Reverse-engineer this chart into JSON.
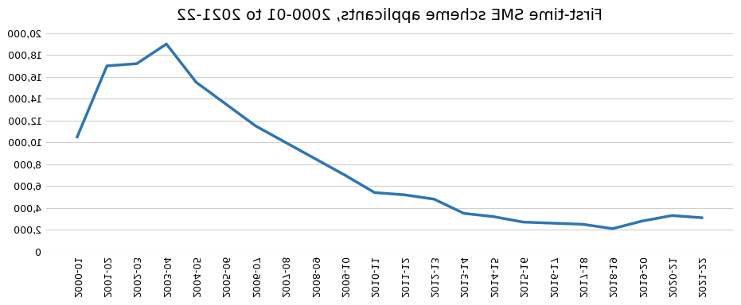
{
  "title": "First-time SME scheme applicants, 2000-01 to 2021-22",
  "categories": [
    "2000-01",
    "2001-02",
    "2002-03",
    "2003-04",
    "2004-05",
    "2005-06",
    "2006-07",
    "2007-08",
    "2008-09",
    "2009-10",
    "2010-11",
    "2011-12",
    "2012-13",
    "2013-14",
    "2014-15",
    "2015-16",
    "2016-17",
    "2017-18",
    "2018-19",
    "2019-20",
    "2020-21",
    "2021-22"
  ],
  "values": [
    10500,
    17000,
    17200,
    19000,
    15500,
    13500,
    11500,
    10000,
    8500,
    7000,
    5400,
    5200,
    4800,
    3500,
    3200,
    2700,
    2600,
    2500,
    2100,
    2800,
    3300,
    3100
  ],
  "line_color": "#2E75B6",
  "line_width": 2.5,
  "ylim": [
    0,
    20000
  ],
  "ytick_step": 2000,
  "background_color": "#ffffff",
  "grid_color": "#d0d0d0",
  "title_fontsize": 14,
  "tick_fontsize": 9
}
